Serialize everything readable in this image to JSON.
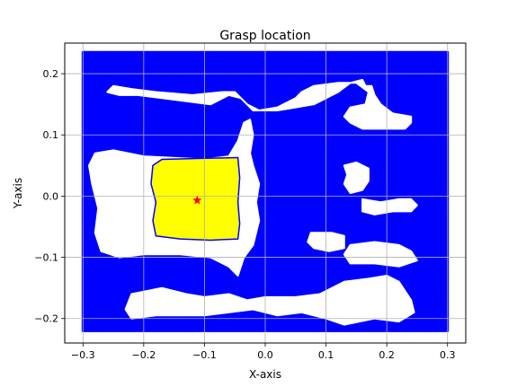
{
  "chart_data": {
    "type": "scatter",
    "title": "Grasp location",
    "xlabel": "X-axis",
    "ylabel": "Y-axis",
    "xlim": [
      -0.33,
      0.33
    ],
    "ylim": [
      -0.24,
      0.25
    ],
    "x_ticks": [
      -0.3,
      -0.2,
      -0.1,
      0.0,
      0.1,
      0.2,
      0.3
    ],
    "x_tick_labels": [
      "−0.3",
      "−0.2",
      "−0.1",
      "0.0",
      "0.1",
      "0.2",
      "0.3"
    ],
    "y_ticks": [
      -0.2,
      -0.1,
      0.0,
      0.1,
      0.2
    ],
    "y_tick_labels": [
      "−0.2",
      "−0.1",
      "0.0",
      "0.1",
      "0.2"
    ],
    "grid": true,
    "series": [
      {
        "kind": "point-cloud",
        "color": "#0000ff",
        "extent": {
          "x": [
            -0.3,
            0.3
          ],
          "y": [
            -0.22,
            0.235
          ]
        },
        "holes": [
          [
            [
              -0.25,
              0.18
            ],
            [
              -0.22,
              0.175
            ],
            [
              -0.18,
              0.17
            ],
            [
              -0.12,
              0.165
            ],
            [
              -0.07,
              0.17
            ],
            [
              -0.05,
              0.17
            ],
            [
              -0.03,
              0.15
            ],
            [
              -0.01,
              0.14
            ],
            [
              0.02,
              0.145
            ],
            [
              0.05,
              0.16
            ],
            [
              0.06,
              0.17
            ],
            [
              0.08,
              0.18
            ],
            [
              0.12,
              0.185
            ],
            [
              0.15,
              0.185
            ],
            [
              0.17,
              0.17
            ],
            [
              0.165,
              0.15
            ],
            [
              0.14,
              0.145
            ],
            [
              0.13,
              0.13
            ],
            [
              0.14,
              0.12
            ],
            [
              0.16,
              0.11
            ],
            [
              0.2,
              0.11
            ],
            [
              0.23,
              0.11
            ],
            [
              0.24,
              0.12
            ],
            [
              0.24,
              0.13
            ],
            [
              0.21,
              0.135
            ],
            [
              0.19,
              0.15
            ],
            [
              0.18,
              0.165
            ],
            [
              0.175,
              0.18
            ],
            [
              0.165,
              0.18
            ],
            [
              0.16,
              0.19
            ],
            [
              0.14,
              0.185
            ],
            [
              0.12,
              0.17
            ],
            [
              0.1,
              0.16
            ],
            [
              0.08,
              0.15
            ],
            [
              0.05,
              0.145
            ],
            [
              0.02,
              0.14
            ],
            [
              -0.02,
              0.14
            ],
            [
              -0.04,
              0.16
            ],
            [
              -0.06,
              0.165
            ],
            [
              -0.09,
              0.15
            ],
            [
              -0.13,
              0.155
            ],
            [
              -0.17,
              0.16
            ],
            [
              -0.21,
              0.165
            ],
            [
              -0.24,
              0.165
            ],
            [
              -0.26,
              0.17
            ]
          ],
          [
            [
              -0.28,
              0.07
            ],
            [
              -0.25,
              0.075
            ],
            [
              -0.2,
              0.065
            ],
            [
              -0.1,
              0.06
            ],
            [
              -0.06,
              0.065
            ],
            [
              -0.045,
              0.09
            ],
            [
              -0.035,
              0.12
            ],
            [
              -0.025,
              0.125
            ],
            [
              -0.02,
              0.1
            ],
            [
              -0.025,
              0.07
            ],
            [
              -0.02,
              0.05
            ],
            [
              -0.01,
              0.02
            ],
            [
              -0.015,
              -0.01
            ],
            [
              -0.01,
              -0.04
            ],
            [
              -0.02,
              -0.08
            ],
            [
              -0.035,
              -0.1
            ],
            [
              -0.045,
              -0.13
            ],
            [
              -0.06,
              -0.115
            ],
            [
              -0.09,
              -0.1
            ],
            [
              -0.14,
              -0.095
            ],
            [
              -0.2,
              -0.095
            ],
            [
              -0.24,
              -0.1
            ],
            [
              -0.27,
              -0.09
            ],
            [
              -0.28,
              -0.06
            ],
            [
              -0.275,
              -0.02
            ],
            [
              -0.285,
              0.02
            ],
            [
              -0.29,
              0.05
            ]
          ],
          [
            [
              -0.22,
              -0.16
            ],
            [
              -0.17,
              -0.15
            ],
            [
              -0.13,
              -0.16
            ],
            [
              -0.1,
              -0.165
            ],
            [
              -0.06,
              -0.16
            ],
            [
              -0.03,
              -0.17
            ],
            [
              0.0,
              -0.165
            ],
            [
              0.05,
              -0.165
            ],
            [
              0.09,
              -0.16
            ],
            [
              0.13,
              -0.14
            ],
            [
              0.17,
              -0.135
            ],
            [
              0.2,
              -0.13
            ],
            [
              0.22,
              -0.14
            ],
            [
              0.24,
              -0.17
            ],
            [
              0.245,
              -0.19
            ],
            [
              0.22,
              -0.205
            ],
            [
              0.18,
              -0.2
            ],
            [
              0.13,
              -0.21
            ],
            [
              0.1,
              -0.2
            ],
            [
              0.06,
              -0.19
            ],
            [
              0.02,
              -0.195
            ],
            [
              -0.02,
              -0.185
            ],
            [
              -0.06,
              -0.19
            ],
            [
              -0.1,
              -0.195
            ],
            [
              -0.14,
              -0.195
            ],
            [
              -0.18,
              -0.195
            ],
            [
              -0.22,
              -0.2
            ],
            [
              -0.23,
              -0.185
            ]
          ],
          [
            [
              0.13,
              0.05
            ],
            [
              0.15,
              0.055
            ],
            [
              0.17,
              0.045
            ],
            [
              0.17,
              0.025
            ],
            [
              0.16,
              0.01
            ],
            [
              0.14,
              0.005
            ],
            [
              0.13,
              0.02
            ],
            [
              0.135,
              0.035
            ]
          ],
          [
            [
              0.16,
              -0.005
            ],
            [
              0.19,
              -0.01
            ],
            [
              0.22,
              -0.005
            ],
            [
              0.24,
              -0.005
            ],
            [
              0.25,
              -0.015
            ],
            [
              0.24,
              -0.025
            ],
            [
              0.21,
              -0.025
            ],
            [
              0.18,
              -0.03
            ],
            [
              0.16,
              -0.025
            ]
          ],
          [
            [
              0.14,
              -0.08
            ],
            [
              0.18,
              -0.075
            ],
            [
              0.22,
              -0.08
            ],
            [
              0.24,
              -0.09
            ],
            [
              0.25,
              -0.105
            ],
            [
              0.22,
              -0.115
            ],
            [
              0.18,
              -0.11
            ],
            [
              0.14,
              -0.11
            ],
            [
              0.13,
              -0.095
            ]
          ],
          [
            [
              0.075,
              -0.06
            ],
            [
              0.11,
              -0.06
            ],
            [
              0.13,
              -0.065
            ],
            [
              0.13,
              -0.085
            ],
            [
              0.105,
              -0.09
            ],
            [
              0.08,
              -0.085
            ],
            [
              0.07,
              -0.075
            ]
          ]
        ]
      },
      {
        "kind": "point-cloud",
        "color": "#ffff00",
        "edge_color": "#0000ff",
        "region": [
          [
            -0.185,
            0.05
          ],
          [
            -0.17,
            0.06
          ],
          [
            -0.09,
            0.062
          ],
          [
            -0.045,
            0.063
          ],
          [
            -0.042,
            0.03
          ],
          [
            -0.045,
            -0.01
          ],
          [
            -0.042,
            -0.045
          ],
          [
            -0.045,
            -0.07
          ],
          [
            -0.09,
            -0.072
          ],
          [
            -0.14,
            -0.07
          ],
          [
            -0.18,
            -0.065
          ],
          [
            -0.185,
            -0.04
          ],
          [
            -0.18,
            -0.01
          ],
          [
            -0.188,
            0.02
          ]
        ]
      },
      {
        "kind": "marker",
        "marker": "star",
        "color": "#ff0000",
        "x": -0.112,
        "y": -0.007
      }
    ]
  }
}
